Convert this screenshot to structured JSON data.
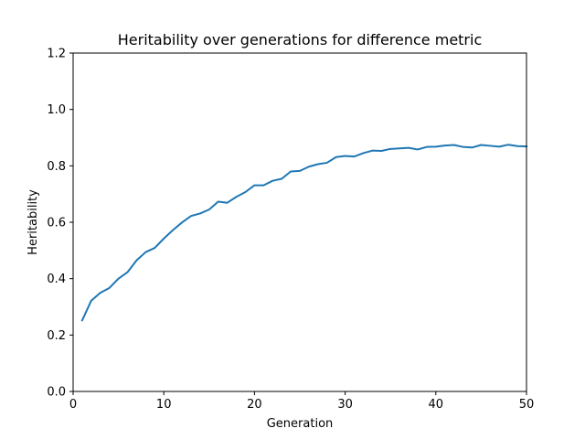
{
  "chart_data": {
    "type": "line",
    "title": "Heritability over generations for difference metric",
    "xlabel": "Generation",
    "ylabel": "Heritability",
    "xlim": [
      0,
      50
    ],
    "ylim": [
      0.0,
      1.2
    ],
    "xticks": [
      0,
      10,
      20,
      30,
      40,
      50
    ],
    "xtick_labels": [
      "0",
      "10",
      "20",
      "30",
      "40",
      "50"
    ],
    "yticks": [
      0.0,
      0.2,
      0.4,
      0.6,
      0.8,
      1.0,
      1.2
    ],
    "ytick_labels": [
      "0.0",
      "0.2",
      "0.4",
      "0.6",
      "0.8",
      "1.0",
      "1.2"
    ],
    "grid": false,
    "series": [
      {
        "color": "#1f77b4",
        "x": [
          1,
          2,
          3,
          4,
          5,
          6,
          7,
          8,
          9,
          10,
          11,
          12,
          13,
          14,
          15,
          16,
          17,
          18,
          19,
          20,
          21,
          22,
          23,
          24,
          25,
          26,
          27,
          28,
          29,
          30,
          31,
          32,
          33,
          34,
          35,
          36,
          37,
          38,
          39,
          40,
          41,
          42,
          43,
          44,
          45,
          46,
          47,
          48,
          49,
          50
        ],
        "values": [
          0.252,
          0.322,
          0.35,
          0.367,
          0.4,
          0.423,
          0.465,
          0.494,
          0.509,
          0.542,
          0.572,
          0.599,
          0.622,
          0.631,
          0.645,
          0.673,
          0.669,
          0.69,
          0.707,
          0.731,
          0.731,
          0.747,
          0.754,
          0.78,
          0.782,
          0.797,
          0.806,
          0.811,
          0.831,
          0.835,
          0.833,
          0.845,
          0.854,
          0.853,
          0.86,
          0.862,
          0.864,
          0.858,
          0.867,
          0.868,
          0.872,
          0.874,
          0.867,
          0.865,
          0.874,
          0.871,
          0.868,
          0.875,
          0.87,
          0.869
        ]
      }
    ]
  }
}
